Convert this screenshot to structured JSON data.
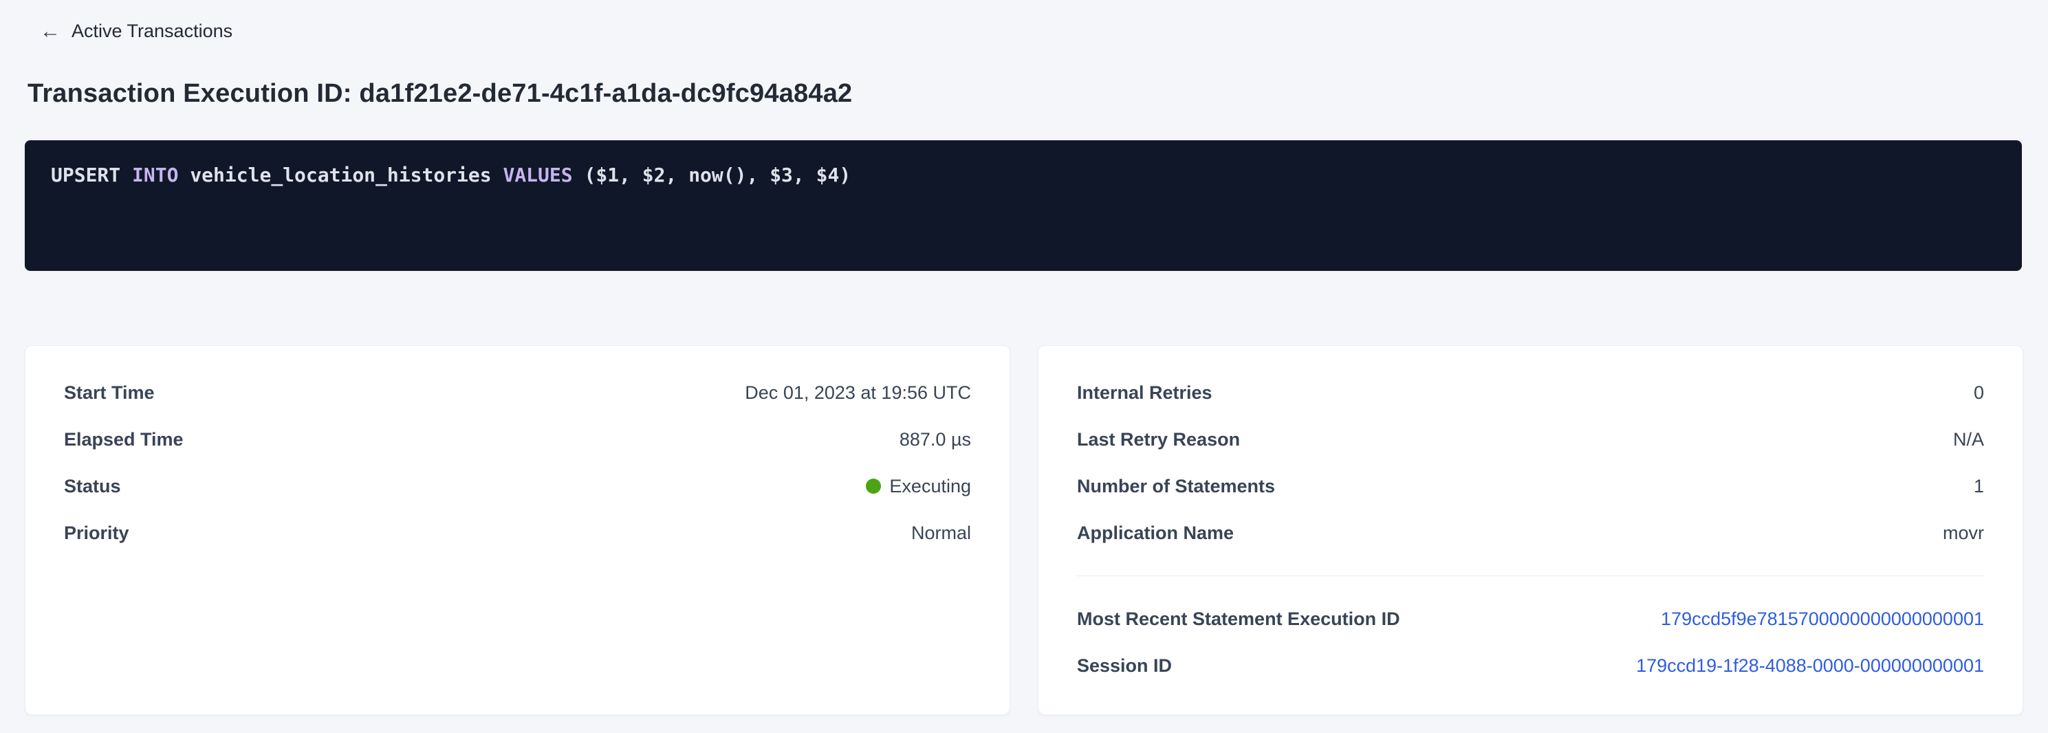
{
  "page": {
    "back_link_label": "Active Transactions",
    "title": "Transaction Execution ID: da1f21e2-de71-4c1f-a1da-dc9fc94a84a2"
  },
  "sql": {
    "upsert": "UPSERT ",
    "into": "INTO ",
    "table": "vehicle_location_histories ",
    "values": "VALUES ",
    "args": "($1, $2, now(), $3, $4)"
  },
  "left_card": {
    "rows": [
      {
        "label": "Start Time",
        "value": "Dec 01, 2023 at 19:56 UTC"
      },
      {
        "label": "Elapsed Time",
        "value": "887.0 µs"
      },
      {
        "label": "Status",
        "value": "Executing"
      },
      {
        "label": "Priority",
        "value": "Normal"
      }
    ]
  },
  "right_card": {
    "rows": [
      {
        "label": "Internal Retries",
        "value": "0"
      },
      {
        "label": "Last Retry Reason",
        "value": "N/A"
      },
      {
        "label": "Number of Statements",
        "value": "1"
      },
      {
        "label": "Application Name",
        "value": "movr"
      }
    ],
    "links": [
      {
        "label": "Most Recent Statement Execution ID",
        "value": "179ccd5f9e7815700000000000000001"
      },
      {
        "label": "Session ID",
        "value": "179ccd19-1f28-4088-0000-000000000001"
      }
    ]
  },
  "colors": {
    "status_executing_dot": "#4ca316",
    "link_blue": "#2f5de2",
    "sql_keyword": "#c5b5ee",
    "sql_background": "#101728",
    "page_background": "#f4f6fa"
  },
  "icons": {
    "back_arrow": "←"
  }
}
